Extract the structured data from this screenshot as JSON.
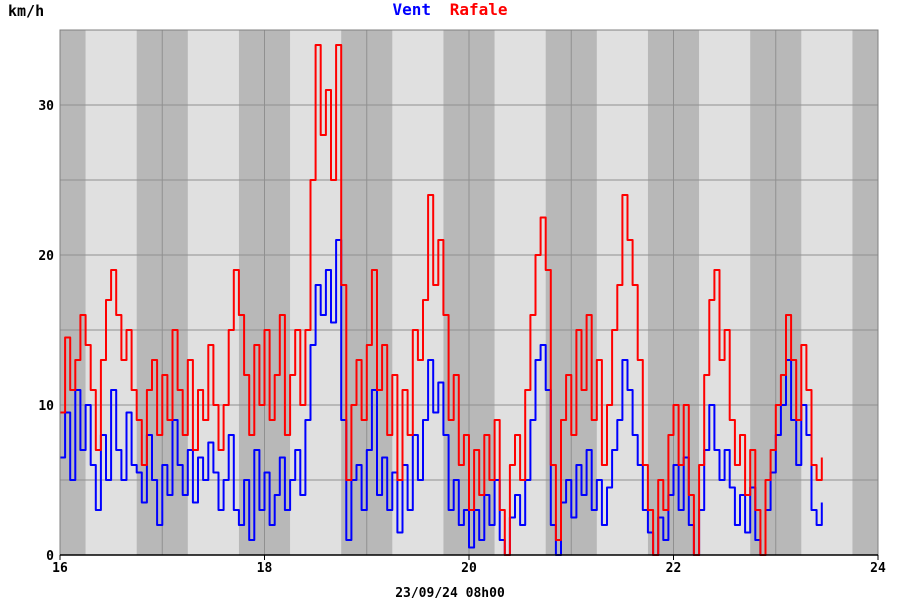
{
  "chart_data": {
    "type": "line",
    "title_parts": [
      {
        "text": "Vent",
        "color": "#0000ff"
      },
      {
        "text": "Rafale",
        "color": "#ff0000"
      }
    ],
    "ylabel": "km/h",
    "xlabel": "23/09/24 08h00",
    "xlim": [
      16,
      24
    ],
    "ylim": [
      0,
      35
    ],
    "x_ticks": [
      16,
      18,
      20,
      22,
      24
    ],
    "y_ticks": [
      0,
      10,
      20,
      30
    ],
    "grid": true,
    "bands": [
      [
        16.0,
        16.25
      ],
      [
        16.75,
        17.25
      ],
      [
        17.75,
        18.25
      ],
      [
        18.75,
        19.25
      ],
      [
        19.75,
        20.25
      ],
      [
        20.75,
        21.25
      ],
      [
        21.75,
        22.25
      ],
      [
        22.75,
        23.25
      ],
      [
        23.75,
        24.0
      ]
    ],
    "background_colors": {
      "light": "#e0e0e0",
      "dark": "#b8b8b8",
      "grid": "#909090"
    },
    "series": [
      {
        "name": "Vent",
        "color": "#0000ff",
        "points": [
          [
            16.0,
            6.5
          ],
          [
            16.05,
            9.5
          ],
          [
            16.1,
            5
          ],
          [
            16.15,
            11
          ],
          [
            16.2,
            7
          ],
          [
            16.25,
            10
          ],
          [
            16.3,
            6
          ],
          [
            16.35,
            3
          ],
          [
            16.4,
            8
          ],
          [
            16.45,
            5
          ],
          [
            16.5,
            11
          ],
          [
            16.55,
            7
          ],
          [
            16.6,
            5
          ],
          [
            16.65,
            9.5
          ],
          [
            16.7,
            6
          ],
          [
            16.75,
            5.5
          ],
          [
            16.8,
            3.5
          ],
          [
            16.85,
            8
          ],
          [
            16.9,
            5
          ],
          [
            16.95,
            2
          ],
          [
            17.0,
            6
          ],
          [
            17.05,
            4
          ],
          [
            17.1,
            9
          ],
          [
            17.15,
            6
          ],
          [
            17.2,
            4
          ],
          [
            17.25,
            7
          ],
          [
            17.3,
            3.5
          ],
          [
            17.35,
            6.5
          ],
          [
            17.4,
            5
          ],
          [
            17.45,
            7.5
          ],
          [
            17.5,
            5.5
          ],
          [
            17.55,
            3
          ],
          [
            17.6,
            5
          ],
          [
            17.65,
            8
          ],
          [
            17.7,
            3
          ],
          [
            17.75,
            2
          ],
          [
            17.8,
            5
          ],
          [
            17.85,
            1
          ],
          [
            17.9,
            7
          ],
          [
            17.95,
            3
          ],
          [
            18.0,
            5.5
          ],
          [
            18.05,
            2
          ],
          [
            18.1,
            4
          ],
          [
            18.15,
            6.5
          ],
          [
            18.2,
            3
          ],
          [
            18.25,
            5
          ],
          [
            18.3,
            7
          ],
          [
            18.35,
            4
          ],
          [
            18.4,
            9
          ],
          [
            18.45,
            14
          ],
          [
            18.5,
            18
          ],
          [
            18.55,
            16
          ],
          [
            18.6,
            19
          ],
          [
            18.65,
            15.5
          ],
          [
            18.7,
            21
          ],
          [
            18.75,
            9
          ],
          [
            18.8,
            1
          ],
          [
            18.85,
            5
          ],
          [
            18.9,
            6
          ],
          [
            18.95,
            3
          ],
          [
            19.0,
            7
          ],
          [
            19.05,
            11
          ],
          [
            19.1,
            4
          ],
          [
            19.15,
            6.5
          ],
          [
            19.2,
            3
          ],
          [
            19.25,
            5.5
          ],
          [
            19.3,
            1.5
          ],
          [
            19.35,
            6
          ],
          [
            19.4,
            3
          ],
          [
            19.45,
            8
          ],
          [
            19.5,
            5
          ],
          [
            19.55,
            9
          ],
          [
            19.6,
            13
          ],
          [
            19.65,
            9.5
          ],
          [
            19.7,
            11.5
          ],
          [
            19.75,
            8
          ],
          [
            19.8,
            3
          ],
          [
            19.85,
            5
          ],
          [
            19.9,
            2
          ],
          [
            19.95,
            3
          ],
          [
            20.0,
            0.5
          ],
          [
            20.05,
            3
          ],
          [
            20.1,
            1
          ],
          [
            20.15,
            4
          ],
          [
            20.2,
            2
          ],
          [
            20.25,
            5
          ],
          [
            20.3,
            1
          ],
          [
            20.35,
            0
          ],
          [
            20.4,
            2.5
          ],
          [
            20.45,
            4
          ],
          [
            20.5,
            2
          ],
          [
            20.55,
            5
          ],
          [
            20.6,
            9
          ],
          [
            20.65,
            13
          ],
          [
            20.7,
            14
          ],
          [
            20.75,
            11
          ],
          [
            20.8,
            2
          ],
          [
            20.85,
            0
          ],
          [
            20.9,
            3.5
          ],
          [
            20.95,
            5
          ],
          [
            21.0,
            2.5
          ],
          [
            21.05,
            6
          ],
          [
            21.1,
            4
          ],
          [
            21.15,
            7
          ],
          [
            21.2,
            3
          ],
          [
            21.25,
            5
          ],
          [
            21.3,
            2
          ],
          [
            21.35,
            4.5
          ],
          [
            21.4,
            7
          ],
          [
            21.45,
            9
          ],
          [
            21.5,
            13
          ],
          [
            21.55,
            11
          ],
          [
            21.6,
            8
          ],
          [
            21.65,
            6
          ],
          [
            21.7,
            3
          ],
          [
            21.75,
            1.5
          ],
          [
            21.8,
            0
          ],
          [
            21.85,
            2.5
          ],
          [
            21.9,
            1
          ],
          [
            21.95,
            4
          ],
          [
            22.0,
            6
          ],
          [
            22.05,
            3
          ],
          [
            22.1,
            6.5
          ],
          [
            22.15,
            2
          ],
          [
            22.2,
            0
          ],
          [
            22.25,
            3
          ],
          [
            22.3,
            7
          ],
          [
            22.35,
            10
          ],
          [
            22.4,
            7
          ],
          [
            22.45,
            5
          ],
          [
            22.5,
            7
          ],
          [
            22.55,
            4.5
          ],
          [
            22.6,
            2
          ],
          [
            22.65,
            4
          ],
          [
            22.7,
            1.5
          ],
          [
            22.75,
            4.5
          ],
          [
            22.8,
            1
          ],
          [
            22.85,
            0
          ],
          [
            22.9,
            3
          ],
          [
            22.95,
            5.5
          ],
          [
            23.0,
            8
          ],
          [
            23.05,
            10
          ],
          [
            23.1,
            13
          ],
          [
            23.15,
            9
          ],
          [
            23.2,
            6
          ],
          [
            23.25,
            10
          ],
          [
            23.3,
            8
          ],
          [
            23.35,
            3
          ],
          [
            23.4,
            2
          ],
          [
            23.45,
            3.5
          ]
        ]
      },
      {
        "name": "Rafale",
        "color": "#ff0000",
        "points": [
          [
            16.0,
            9.5
          ],
          [
            16.05,
            14.5
          ],
          [
            16.1,
            11
          ],
          [
            16.15,
            13
          ],
          [
            16.2,
            16
          ],
          [
            16.25,
            14
          ],
          [
            16.3,
            11
          ],
          [
            16.35,
            7
          ],
          [
            16.4,
            13
          ],
          [
            16.45,
            17
          ],
          [
            16.5,
            19
          ],
          [
            16.55,
            16
          ],
          [
            16.6,
            13
          ],
          [
            16.65,
            15
          ],
          [
            16.7,
            11
          ],
          [
            16.75,
            9
          ],
          [
            16.8,
            6
          ],
          [
            16.85,
            11
          ],
          [
            16.9,
            13
          ],
          [
            16.95,
            8
          ],
          [
            17.0,
            12
          ],
          [
            17.05,
            9
          ],
          [
            17.1,
            15
          ],
          [
            17.15,
            11
          ],
          [
            17.2,
            8
          ],
          [
            17.25,
            13
          ],
          [
            17.3,
            7
          ],
          [
            17.35,
            11
          ],
          [
            17.4,
            9
          ],
          [
            17.45,
            14
          ],
          [
            17.5,
            10
          ],
          [
            17.55,
            7
          ],
          [
            17.6,
            10
          ],
          [
            17.65,
            15
          ],
          [
            17.7,
            19
          ],
          [
            17.75,
            16
          ],
          [
            17.8,
            12
          ],
          [
            17.85,
            8
          ],
          [
            17.9,
            14
          ],
          [
            17.95,
            10
          ],
          [
            18.0,
            15
          ],
          [
            18.05,
            9
          ],
          [
            18.1,
            12
          ],
          [
            18.15,
            16
          ],
          [
            18.2,
            8
          ],
          [
            18.25,
            12
          ],
          [
            18.3,
            15
          ],
          [
            18.35,
            10
          ],
          [
            18.4,
            15
          ],
          [
            18.45,
            25
          ],
          [
            18.5,
            34
          ],
          [
            18.55,
            28
          ],
          [
            18.6,
            31
          ],
          [
            18.65,
            25
          ],
          [
            18.7,
            34
          ],
          [
            18.75,
            18
          ],
          [
            18.8,
            5
          ],
          [
            18.85,
            10
          ],
          [
            18.9,
            13
          ],
          [
            18.95,
            9
          ],
          [
            19.0,
            14
          ],
          [
            19.05,
            19
          ],
          [
            19.1,
            11
          ],
          [
            19.15,
            14
          ],
          [
            19.2,
            8
          ],
          [
            19.25,
            12
          ],
          [
            19.3,
            5
          ],
          [
            19.35,
            11
          ],
          [
            19.4,
            8
          ],
          [
            19.45,
            15
          ],
          [
            19.5,
            13
          ],
          [
            19.55,
            17
          ],
          [
            19.6,
            24
          ],
          [
            19.65,
            18
          ],
          [
            19.7,
            21
          ],
          [
            19.75,
            16
          ],
          [
            19.8,
            9
          ],
          [
            19.85,
            12
          ],
          [
            19.9,
            6
          ],
          [
            19.95,
            8
          ],
          [
            20.0,
            3
          ],
          [
            20.05,
            7
          ],
          [
            20.1,
            4
          ],
          [
            20.15,
            8
          ],
          [
            20.2,
            5
          ],
          [
            20.25,
            9
          ],
          [
            20.3,
            3
          ],
          [
            20.35,
            0
          ],
          [
            20.4,
            6
          ],
          [
            20.45,
            8
          ],
          [
            20.5,
            5
          ],
          [
            20.55,
            11
          ],
          [
            20.6,
            16
          ],
          [
            20.65,
            20
          ],
          [
            20.7,
            22.5
          ],
          [
            20.75,
            19
          ],
          [
            20.8,
            6
          ],
          [
            20.85,
            1
          ],
          [
            20.9,
            9
          ],
          [
            20.95,
            12
          ],
          [
            21.0,
            8
          ],
          [
            21.05,
            15
          ],
          [
            21.1,
            11
          ],
          [
            21.15,
            16
          ],
          [
            21.2,
            9
          ],
          [
            21.25,
            13
          ],
          [
            21.3,
            6
          ],
          [
            21.35,
            10
          ],
          [
            21.4,
            15
          ],
          [
            21.45,
            18
          ],
          [
            21.5,
            24
          ],
          [
            21.55,
            21
          ],
          [
            21.6,
            18
          ],
          [
            21.65,
            13
          ],
          [
            21.7,
            6
          ],
          [
            21.75,
            3
          ],
          [
            21.8,
            0
          ],
          [
            21.85,
            5
          ],
          [
            21.9,
            3
          ],
          [
            21.95,
            8
          ],
          [
            22.0,
            10
          ],
          [
            22.05,
            6
          ],
          [
            22.1,
            10
          ],
          [
            22.15,
            4
          ],
          [
            22.2,
            0
          ],
          [
            22.25,
            6
          ],
          [
            22.3,
            12
          ],
          [
            22.35,
            17
          ],
          [
            22.4,
            19
          ],
          [
            22.45,
            13
          ],
          [
            22.5,
            15
          ],
          [
            22.55,
            9
          ],
          [
            22.6,
            6
          ],
          [
            22.65,
            8
          ],
          [
            22.7,
            4
          ],
          [
            22.75,
            7
          ],
          [
            22.8,
            3
          ],
          [
            22.85,
            0
          ],
          [
            22.9,
            5
          ],
          [
            22.95,
            7
          ],
          [
            23.0,
            10
          ],
          [
            23.05,
            12
          ],
          [
            23.1,
            16
          ],
          [
            23.15,
            13
          ],
          [
            23.2,
            9
          ],
          [
            23.25,
            14
          ],
          [
            23.3,
            11
          ],
          [
            23.35,
            6
          ],
          [
            23.4,
            5
          ],
          [
            23.45,
            6.5
          ]
        ]
      }
    ]
  }
}
